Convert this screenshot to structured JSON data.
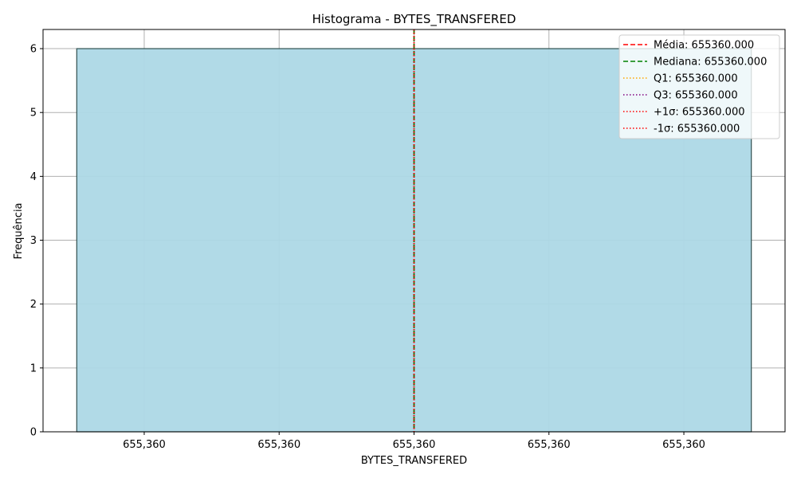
{
  "chart_data": {
    "type": "bar",
    "title": "Histograma - BYTES_TRANSFERED",
    "xlabel": "BYTES_TRANSFERED",
    "ylabel": "Frequência",
    "bins": [
      {
        "x0": -0.5,
        "x1": 0.5,
        "count": 6
      }
    ],
    "xlim": [
      -0.55,
      0.55
    ],
    "ylim": [
      0,
      6.3
    ],
    "yticks": [
      0,
      1,
      2,
      3,
      4,
      5,
      6
    ],
    "xticks": [
      {
        "value": -0.4,
        "label": "655,360"
      },
      {
        "value": -0.2,
        "label": "655,360"
      },
      {
        "value": 0.0,
        "label": "655,360"
      },
      {
        "value": 0.2,
        "label": "655,360"
      },
      {
        "value": 0.4,
        "label": "655,360"
      }
    ],
    "grid": true,
    "bar_color": "#add8e6",
    "bar_edge_color": "#2f4f4f",
    "legend_position": "top-right",
    "reference_lines": [
      {
        "label": "Média: 655360.000",
        "value": 0.0,
        "color": "#ff0000",
        "style": "dashed"
      },
      {
        "label": "Mediana: 655360.000",
        "value": 0.0,
        "color": "#008000",
        "style": "dashed"
      },
      {
        "label": "Q1: 655360.000",
        "value": 0.0,
        "color": "#ffa500",
        "style": "dotted"
      },
      {
        "label": "Q3: 655360.000",
        "value": 0.0,
        "color": "#800080",
        "style": "dotted"
      },
      {
        "label": "+1σ: 655360.000",
        "value": 0.0,
        "color": "#ff0000",
        "style": "dotted"
      },
      {
        "label": "-1σ: 655360.000",
        "value": 0.0,
        "color": "#ff0000",
        "style": "dotted"
      }
    ]
  }
}
